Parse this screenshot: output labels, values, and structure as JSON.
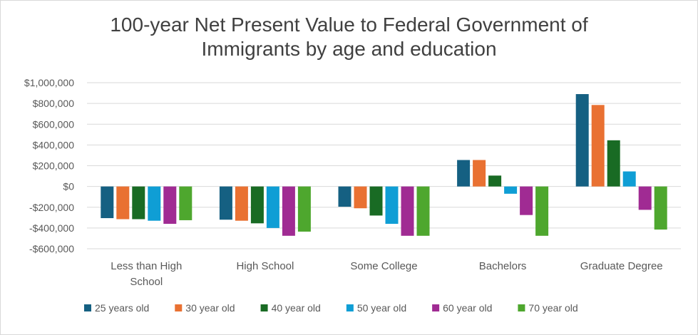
{
  "chart_data": {
    "type": "bar",
    "title": "100-year Net Present Value to Federal Government of Immigrants by age and education",
    "title_lines": [
      "100-year Net Present Value to Federal Government of",
      "Immigrants by age and education"
    ],
    "categories": [
      "Less than High School",
      "High School",
      "Some College",
      "Bachelors",
      "Graduate Degree"
    ],
    "category_lines": [
      [
        "Less than High",
        "School"
      ],
      [
        "High School"
      ],
      [
        "Some College"
      ],
      [
        "Bachelors"
      ],
      [
        "Graduate Degree"
      ]
    ],
    "series": [
      {
        "name": "25 years old",
        "color": "#156082",
        "values": [
          -305000,
          -320000,
          -195000,
          255000,
          890000
        ]
      },
      {
        "name": "30 year old",
        "color": "#e97132",
        "values": [
          -315000,
          -330000,
          -210000,
          255000,
          785000
        ]
      },
      {
        "name": "40 year old",
        "color": "#196b24",
        "values": [
          -315000,
          -355000,
          -280000,
          105000,
          445000
        ]
      },
      {
        "name": "50 year old",
        "color": "#0f9ed5",
        "values": [
          -330000,
          -400000,
          -360000,
          -70000,
          145000
        ]
      },
      {
        "name": "60 year old",
        "color": "#a02b93",
        "values": [
          -360000,
          -475000,
          -475000,
          -275000,
          -225000
        ]
      },
      {
        "name": "70 year old",
        "color": "#4ea72e",
        "values": [
          -325000,
          -435000,
          -475000,
          -475000,
          -415000
        ]
      }
    ],
    "ylim": [
      -600000,
      1000000
    ],
    "yticks": [
      1000000,
      800000,
      600000,
      400000,
      200000,
      0,
      -200000,
      -400000,
      -600000
    ],
    "ytick_labels": [
      "$1,000,000",
      "$800,000",
      "$600,000",
      "$400,000",
      "$200,000",
      "$0",
      "-$200,000",
      "-$400,000",
      "-$600,000"
    ],
    "grid": true,
    "legend_position": "bottom",
    "xlabel": "",
    "ylabel": ""
  }
}
